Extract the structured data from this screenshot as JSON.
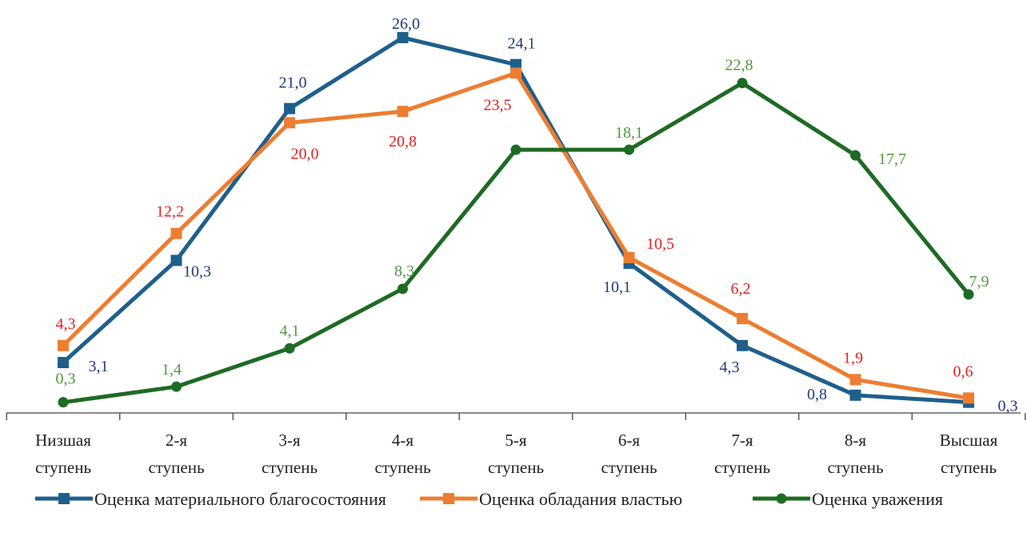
{
  "chart_data": {
    "type": "line",
    "categories": [
      [
        "Низшая",
        "ступень"
      ],
      [
        "2-я",
        "ступень"
      ],
      [
        "3-я",
        "ступень"
      ],
      [
        "4-я",
        "ступень"
      ],
      [
        "5-я",
        "ступень"
      ],
      [
        "6-я",
        "ступень"
      ],
      [
        "7-я",
        "ступень"
      ],
      [
        "8-я",
        "ступень"
      ],
      [
        "Высшая",
        "ступень"
      ]
    ],
    "title": "",
    "xlabel": "",
    "ylabel": "",
    "ylim": [
      0,
      26
    ],
    "grid": false,
    "legend": "bottom",
    "series": [
      {
        "name": "Оценка материального благосостояния",
        "color": "#1f5f8b",
        "label_color": "#1f3a7a",
        "marker": "square",
        "values": [
          3.1,
          10.3,
          21.0,
          26.0,
          24.1,
          10.1,
          4.3,
          0.8,
          0.3
        ],
        "labels": [
          "3,1",
          "10,3",
          "21,0",
          "26,0",
          "24,1",
          "10,1",
          "4,3",
          "0,8",
          "0,3"
        ]
      },
      {
        "name": "Оценка обладания властью",
        "color": "#ed7d31",
        "label_color": "#e8201f",
        "marker": "square",
        "values": [
          4.3,
          12.2,
          20.0,
          20.8,
          23.5,
          10.5,
          6.2,
          1.9,
          0.6
        ],
        "labels": [
          "4,3",
          "12,2",
          "20,0",
          "20,8",
          "23,5",
          "10,5",
          "6,2",
          "1,9",
          "0,6"
        ]
      },
      {
        "name": "Оценка уважения",
        "color": "#1e6b23",
        "label_color": "#4f9a3a",
        "marker": "circle",
        "values": [
          0.3,
          1.4,
          4.1,
          8.3,
          18.1,
          18.1,
          22.8,
          17.7,
          7.9
        ],
        "labels": [
          "0,3",
          "1,4",
          "4,1",
          "8,3",
          "",
          "18,1",
          "22,8",
          "17,7",
          "7,9"
        ]
      }
    ]
  }
}
